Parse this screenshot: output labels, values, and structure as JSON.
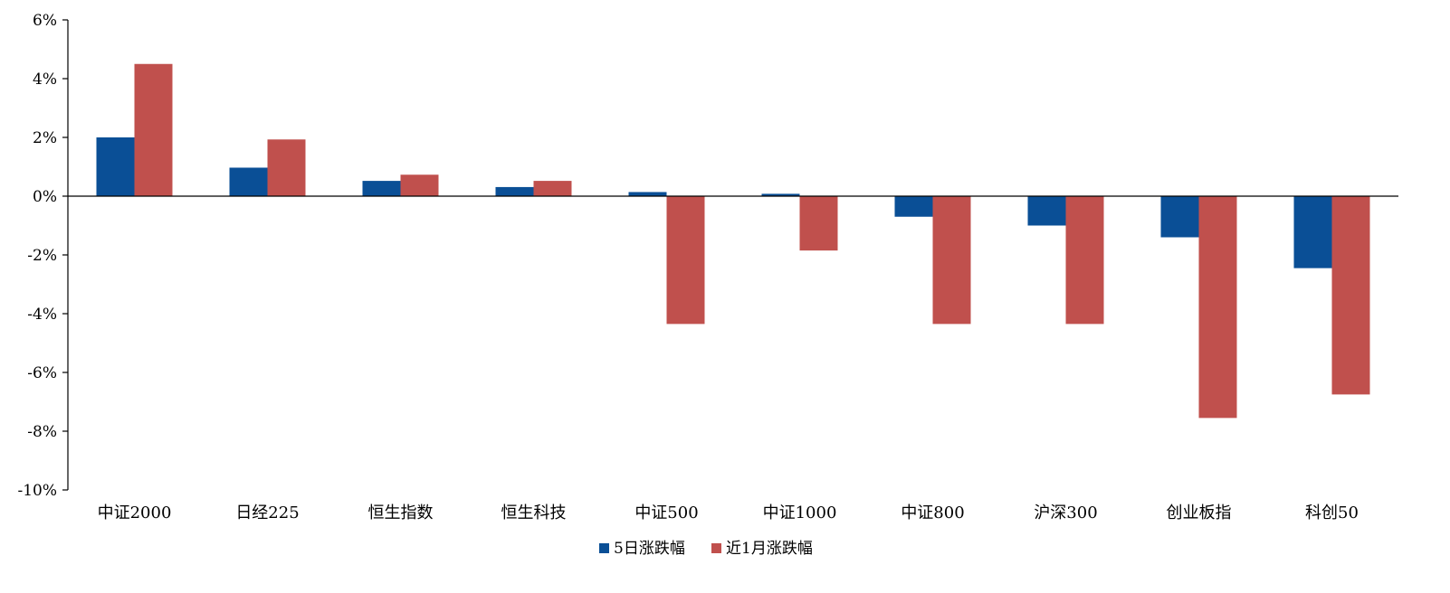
{
  "chart_data": {
    "type": "bar",
    "categories": [
      "中证2000",
      "日经225",
      "恒生指数",
      "恒生科技",
      "中证500",
      "中证1000",
      "中证800",
      "沪深300",
      "创业板指",
      "科创50"
    ],
    "series": [
      {
        "name": "5日涨跌幅",
        "color": "#0a4f96",
        "values": [
          2.0,
          0.97,
          0.52,
          0.31,
          0.14,
          0.08,
          -0.7,
          -1.0,
          -1.4,
          -2.45
        ]
      },
      {
        "name": "近1月涨跌幅",
        "color": "#c0504d",
        "values": [
          4.5,
          1.93,
          0.73,
          0.52,
          -4.35,
          -1.85,
          -4.35,
          -4.35,
          -7.55,
          -6.75
        ]
      }
    ],
    "ylim": [
      -10,
      6
    ],
    "yticks": [
      6,
      4,
      2,
      0,
      -2,
      -4,
      -6,
      -8,
      -10
    ],
    "ytick_labels": [
      "6%",
      "4%",
      "2%",
      "0%",
      "-2%",
      "-4%",
      "-6%",
      "-8%",
      "-10%"
    ],
    "legend_position": "bottom-center",
    "grid": false
  }
}
